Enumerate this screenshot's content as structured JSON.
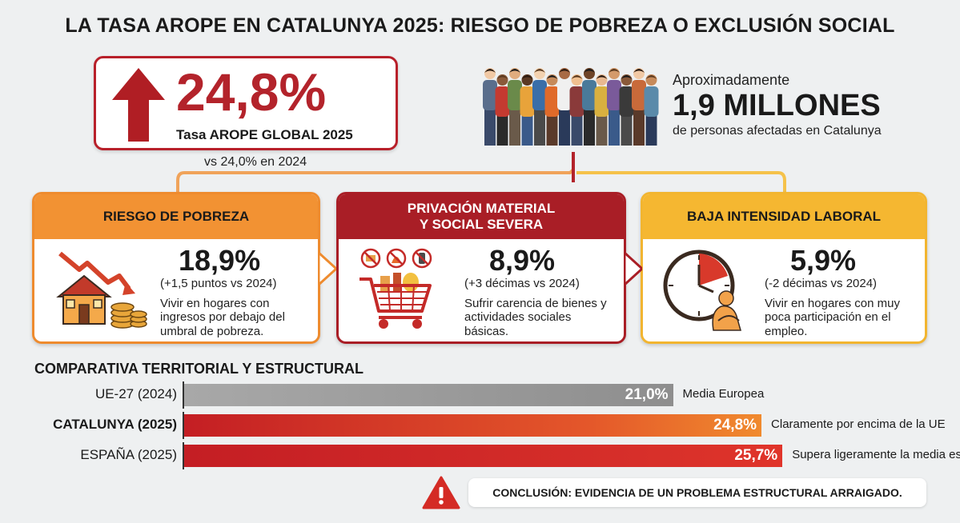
{
  "title": "LA TASA AROPE EN CATALUNYA 2025: RIESGO DE POBREZA O EXCLUSIÓN SOCIAL",
  "hero": {
    "value": "24,8%",
    "label": "Tasa AROPE GLOBAL 2025",
    "compare": "vs 24,0% en 2024"
  },
  "people": {
    "approx": "Aproximadamente",
    "count": "1,9 MILLONES",
    "subtitle": "de personas afectadas en Catalunya"
  },
  "cards": [
    {
      "heading": "RIESGO DE POBREZA",
      "value": "18,9%",
      "delta": "(+1,5 puntos vs 2024)",
      "desc": "Vivir en hogares con ingresos por debajo del umbral de pobreza."
    },
    {
      "heading_line1": "PRIVACIÓN MATERIAL",
      "heading_line2": "Y SOCIAL SEVERA",
      "value": "8,9%",
      "delta": "(+3 décimas vs 2024)",
      "desc": "Sufrir carencia de bienes y actividades sociales básicas."
    },
    {
      "heading": "BAJA INTENSIDAD LABORAL",
      "value": "5,9%",
      "delta": "(-2 décimas vs 2024)",
      "desc": "Vivir en hogares con muy poca participación en el empleo."
    }
  ],
  "chart_data": {
    "type": "bar",
    "orientation": "horizontal",
    "title": "COMPARATIVA TERRITORIAL Y ESTRUCTURAL",
    "categories": [
      "UE-27 (2024)",
      "CATALUNYA (2025)",
      "ESPAÑA (2025)"
    ],
    "values": [
      21.0,
      24.8,
      25.7
    ],
    "value_labels": [
      "21,0%",
      "24,8%",
      "25,7%"
    ],
    "annotations": [
      "Media Europea",
      "Claramente por encima de la UE",
      "Supera ligeramente la media española"
    ],
    "colors": [
      "#9b9b9b",
      "#e36a22",
      "#d4252a"
    ],
    "xlim": [
      0,
      27
    ]
  },
  "conclusion": "CONCLUSIÓN: EVIDENCIA DE UN PROBLEMA ESTRUCTURAL ARRAIGADO.",
  "colors": {
    "accent_red": "#b3232b",
    "orange": "#f29233",
    "yellow": "#f5b731"
  }
}
